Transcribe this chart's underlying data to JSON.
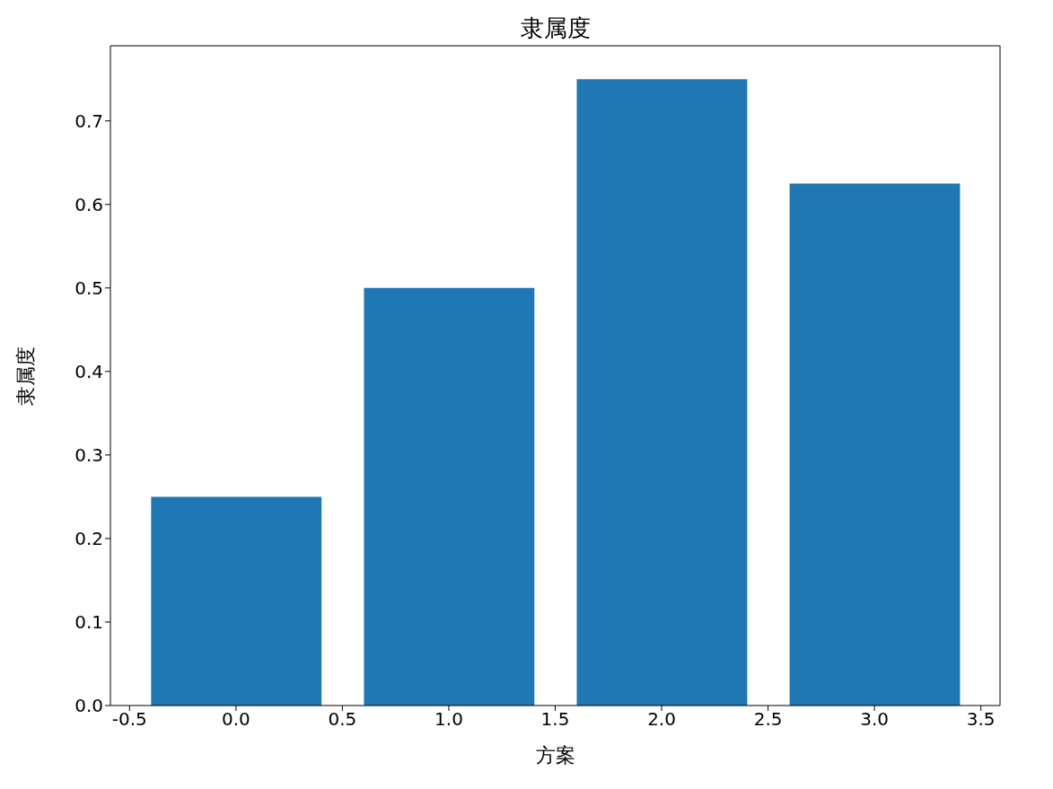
{
  "chart_data": {
    "type": "bar",
    "title": "隶属度",
    "xlabel": "方案",
    "ylabel": "隶属度",
    "x": [
      0,
      1,
      2,
      3
    ],
    "values": [
      0.25,
      0.5,
      0.75,
      0.625
    ],
    "color": "#1f77b4",
    "xlim": [
      -0.59,
      3.59
    ],
    "xticks": [
      -0.5,
      {
        "value": 0,
        "label": "0.0"
      },
      0.5,
      {
        "value": 1,
        "label": "1.0"
      },
      1.5,
      {
        "value": 2,
        "label": "2.0"
      },
      2.5,
      {
        "value": 3,
        "label": "3.0"
      },
      3.5
    ],
    "ylim": [
      0,
      0.79
    ],
    "yticks": [
      {
        "value": 0,
        "label": "0.0"
      },
      0.1,
      0.2,
      0.3,
      0.4,
      0.5,
      0.6,
      0.7
    ]
  }
}
